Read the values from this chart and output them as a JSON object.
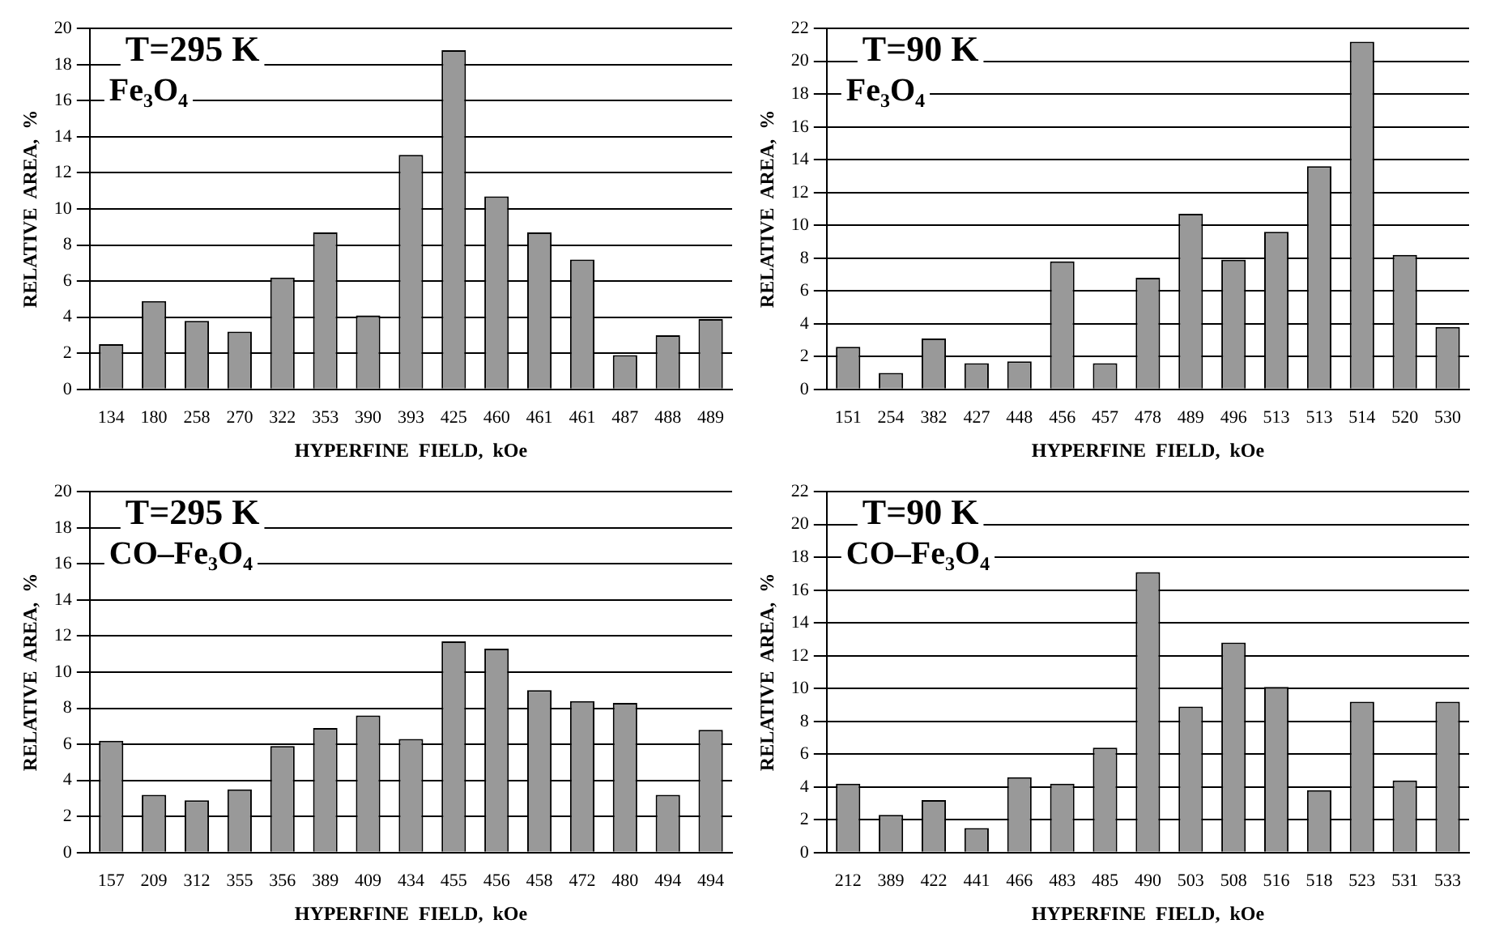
{
  "chart_data": [
    {
      "type": "bar",
      "title": "T=295 K",
      "subtitle": "Fe₃O₄",
      "xlabel": "HYPERFINE  FIELD,  kOe",
      "ylabel": "RELATIVE  AREA,  %",
      "categories": [
        "134",
        "180",
        "258",
        "270",
        "322",
        "353",
        "390",
        "393",
        "425",
        "460",
        "461",
        "461",
        "487",
        "488",
        "489"
      ],
      "values": [
        2.5,
        4.9,
        3.8,
        3.2,
        6.2,
        8.7,
        4.1,
        13.0,
        18.8,
        10.7,
        8.7,
        7.2,
        1.9,
        3.0,
        3.9
      ],
      "color": "#999999",
      "ylim": [
        0,
        20
      ],
      "yticks": [
        0,
        2,
        4,
        6,
        8,
        10,
        12,
        14,
        16,
        18,
        20
      ],
      "grid": "y"
    },
    {
      "type": "bar",
      "title": "T=90 K",
      "subtitle": "Fe₃O₄",
      "xlabel": "HYPERFINE  FIELD,  kOe",
      "ylabel": "RELATIVE  AREA,  %",
      "categories": [
        "151",
        "254",
        "382",
        "427",
        "448",
        "456",
        "457",
        "478",
        "489",
        "496",
        "513",
        "513",
        "514",
        "520",
        "530"
      ],
      "values": [
        2.6,
        1.0,
        3.1,
        1.6,
        1.7,
        7.8,
        1.6,
        6.8,
        10.7,
        7.9,
        9.6,
        13.6,
        21.2,
        8.2,
        3.8
      ],
      "color": "#999999",
      "ylim": [
        0,
        22
      ],
      "yticks": [
        0,
        2,
        4,
        6,
        8,
        10,
        12,
        14,
        16,
        18,
        20,
        22
      ],
      "grid": "y"
    },
    {
      "type": "bar",
      "title": "T=295 K",
      "subtitle": "CO–Fe₃O₄",
      "xlabel": "HYPERFINE  FIELD,  kOe",
      "ylabel": "RELATIVE  AREA,  %",
      "categories": [
        "157",
        "209",
        "312",
        "355",
        "356",
        "389",
        "409",
        "434",
        "455",
        "456",
        "458",
        "472",
        "480",
        "494",
        "494"
      ],
      "values": [
        6.2,
        3.2,
        2.9,
        3.5,
        5.9,
        6.9,
        7.6,
        6.3,
        11.7,
        11.3,
        9.0,
        8.4,
        8.3,
        3.2,
        6.8
      ],
      "color": "#999999",
      "ylim": [
        0,
        20
      ],
      "yticks": [
        0,
        2,
        4,
        6,
        8,
        10,
        12,
        14,
        16,
        18,
        20
      ],
      "grid": "y"
    },
    {
      "type": "bar",
      "title": "T=90 K",
      "subtitle": "CO–Fe₃O₄",
      "xlabel": "HYPERFINE  FIELD,  kOe",
      "ylabel": "RELATIVE  AREA,  %",
      "categories": [
        "212",
        "389",
        "422",
        "441",
        "466",
        "483",
        "485",
        "490",
        "503",
        "508",
        "516",
        "518",
        "523",
        "531",
        "533"
      ],
      "values": [
        4.2,
        2.3,
        3.2,
        1.5,
        4.6,
        4.2,
        6.4,
        17.1,
        8.9,
        12.8,
        10.1,
        3.8,
        9.2,
        4.4,
        9.2
      ],
      "color": "#999999",
      "ylim": [
        0,
        22
      ],
      "yticks": [
        0,
        2,
        4,
        6,
        8,
        10,
        12,
        14,
        16,
        18,
        20,
        22
      ],
      "grid": "y"
    }
  ]
}
